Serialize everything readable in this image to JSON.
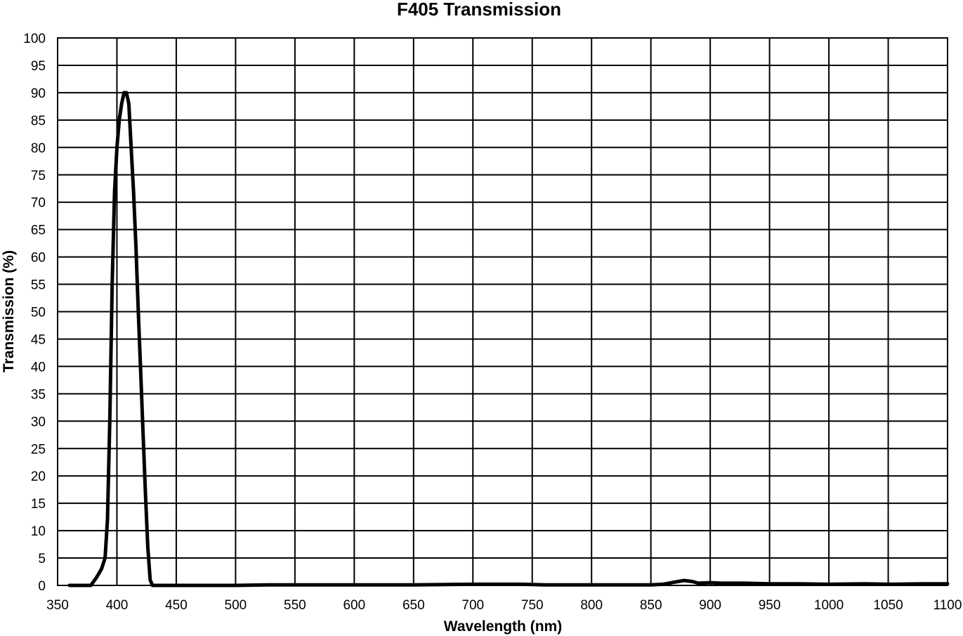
{
  "chart_data": {
    "type": "line",
    "title": "F405 Transmission",
    "xlabel": "Wavelength (nm)",
    "ylabel": "Transmission (%)",
    "xlim": [
      350,
      1100
    ],
    "ylim": [
      0,
      100
    ],
    "xticks": [
      350,
      400,
      450,
      500,
      550,
      600,
      650,
      700,
      750,
      800,
      850,
      900,
      950,
      1000,
      1050,
      1100
    ],
    "yticks": [
      0,
      5,
      10,
      15,
      20,
      25,
      30,
      35,
      40,
      45,
      50,
      55,
      60,
      65,
      70,
      75,
      80,
      85,
      90,
      95,
      100
    ],
    "grid": true,
    "line_color": "#000000",
    "series": [
      {
        "x": [
          360,
          370,
          378,
          383,
          387,
          390,
          392,
          394,
          396,
          398,
          400,
          402,
          404,
          406,
          408,
          410,
          412,
          414,
          416,
          418,
          420,
          422,
          424,
          426,
          428,
          430,
          435,
          450,
          500,
          530,
          550,
          580,
          600,
          650,
          700,
          740,
          760,
          800,
          850,
          860,
          870,
          878,
          885,
          890,
          900,
          910,
          930,
          950,
          970,
          1000,
          1030,
          1050,
          1080,
          1100
        ],
        "y": [
          0,
          0,
          0,
          1.5,
          3,
          5,
          12,
          30,
          55,
          72,
          80,
          85,
          88,
          90,
          90,
          88,
          80,
          72,
          62,
          50,
          39,
          28,
          17,
          7,
          1,
          0,
          0,
          0,
          0,
          0.1,
          0.1,
          0.1,
          0.1,
          0.1,
          0.2,
          0.2,
          0.1,
          0.1,
          0.1,
          0.2,
          0.6,
          0.9,
          0.7,
          0.4,
          0.5,
          0.4,
          0.4,
          0.3,
          0.3,
          0.2,
          0.3,
          0.2,
          0.3,
          0.3
        ]
      }
    ]
  }
}
